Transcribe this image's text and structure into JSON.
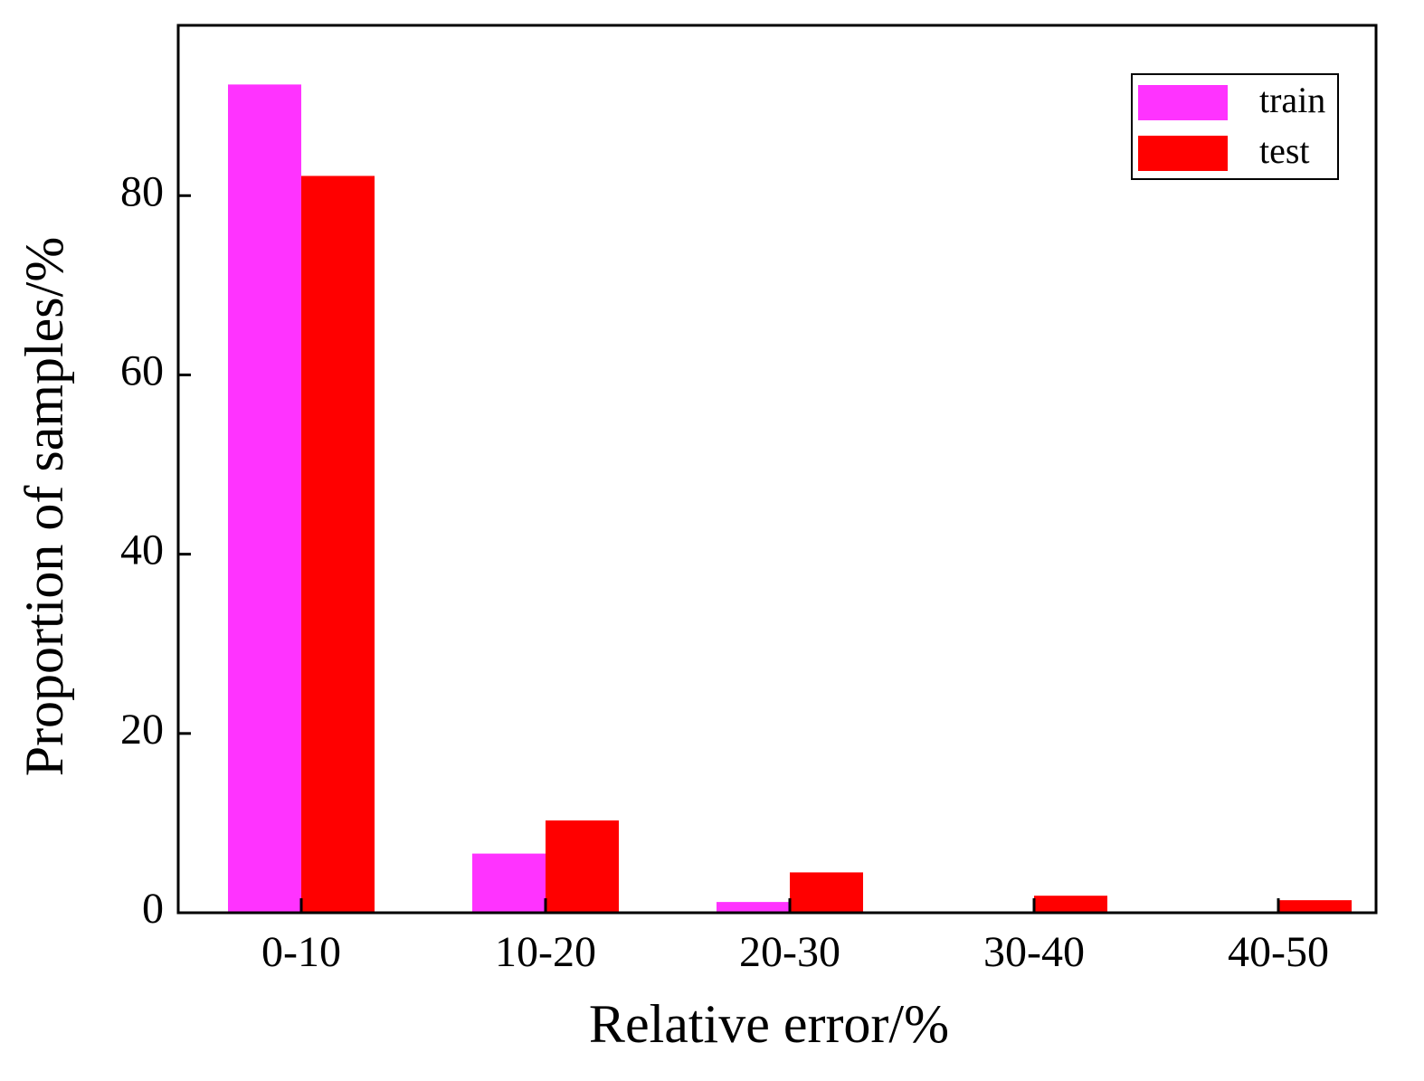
{
  "chart_data": {
    "type": "bar",
    "xlabel": "Relative error/%",
    "ylabel": "Proportion of samples/%",
    "categories": [
      "0-10",
      "10-20",
      "20-30",
      "30-40",
      "40-50"
    ],
    "series": [
      {
        "name": "train",
        "color": "#ff33ff",
        "values": [
          92.4,
          6.6,
          1.2,
          0,
          0
        ]
      },
      {
        "name": "test",
        "color": "#ff0000",
        "values": [
          82.2,
          10.3,
          4.5,
          1.9,
          1.4
        ]
      }
    ],
    "ylim": [
      0,
      99
    ],
    "yticks": [
      0,
      20,
      40,
      60,
      80
    ],
    "legend": "upper-right"
  }
}
